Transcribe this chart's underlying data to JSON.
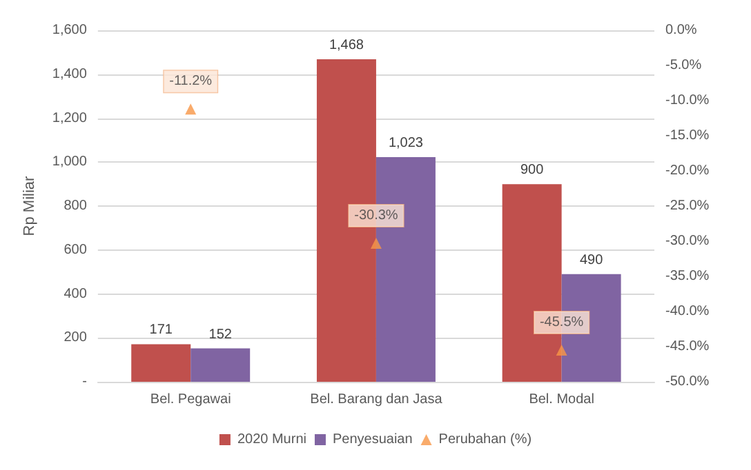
{
  "chart_data": {
    "type": "bar",
    "ylabel": "Rp Miliar",
    "categories": [
      "Bel. Pegawai",
      "Bel. Barang dan Jasa",
      "Bel. Modal"
    ],
    "series": [
      {
        "name": "2020 Murni",
        "color": "#c0504d",
        "values": [
          171,
          1468,
          900
        ],
        "value_labels": [
          "171",
          "1,468",
          "900"
        ]
      },
      {
        "name": "Penyesuaian",
        "color": "#8064a2",
        "values": [
          152,
          1023,
          490
        ],
        "value_labels": [
          "152",
          "1,023",
          "490"
        ]
      },
      {
        "name": "Perubahan (%)",
        "type": "scatter",
        "axis": "y2",
        "marker": "triangle",
        "color": "#f79646",
        "values": [
          -11.2,
          -30.3,
          -45.5
        ],
        "value_labels": [
          "-11.2%",
          "-30.3%",
          "-45.5%"
        ]
      }
    ],
    "ylim": [
      0,
      1600
    ],
    "yticks": [
      {
        "value": 0,
        "label": "-"
      },
      {
        "value": 200,
        "label": "200"
      },
      {
        "value": 400,
        "label": "400"
      },
      {
        "value": 600,
        "label": "600"
      },
      {
        "value": 800,
        "label": "800"
      },
      {
        "value": 1000,
        "label": "1,000"
      },
      {
        "value": 1200,
        "label": "1,200"
      },
      {
        "value": 1400,
        "label": "1,400"
      },
      {
        "value": 1600,
        "label": "1,600"
      }
    ],
    "y2lim": [
      -50,
      0
    ],
    "y2ticks": [
      {
        "value": 0,
        "label": "0.0%"
      },
      {
        "value": -5,
        "label": "-5.0%"
      },
      {
        "value": -10,
        "label": "-10.0%"
      },
      {
        "value": -15,
        "label": "-15.0%"
      },
      {
        "value": -20,
        "label": "-20.0%"
      },
      {
        "value": -25,
        "label": "-25.0%"
      },
      {
        "value": -30,
        "label": "-30.0%"
      },
      {
        "value": -35,
        "label": "-35.0%"
      },
      {
        "value": -40,
        "label": "-40.0%"
      },
      {
        "value": -45,
        "label": "-45.0%"
      },
      {
        "value": -50,
        "label": "-50.0%"
      }
    ],
    "grid": "y",
    "legend": "bottom"
  }
}
